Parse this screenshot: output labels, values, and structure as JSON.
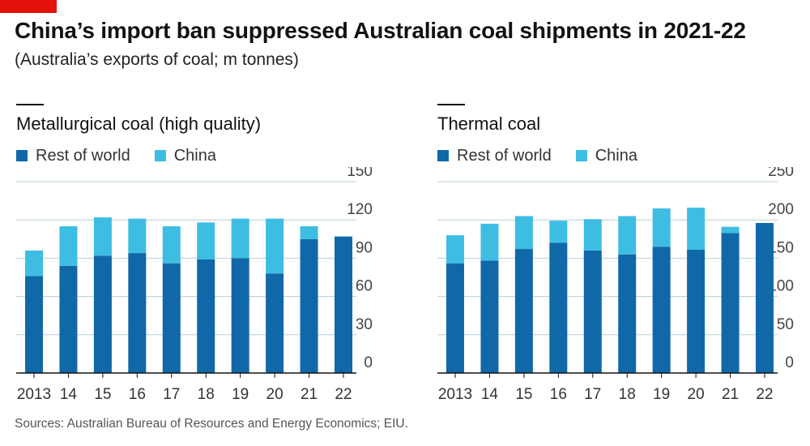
{
  "header": {
    "title": "China’s import ban suppressed Australian coal shipments in 2021-22",
    "subtitle": "(Australia’s exports of coal; m tonnes)"
  },
  "legend_labels": {
    "rest": "Rest of world",
    "china": "China"
  },
  "colors": {
    "rest_of_world": "#1068a8",
    "china": "#3ebde3",
    "brand_red": "#e3120b",
    "grid": "#b9cdd8"
  },
  "source": "Sources: Australian Bureau of Resources and Energy Economics; EIU.",
  "chart_data": [
    {
      "type": "bar",
      "stacked": true,
      "title": "Metallurgical coal (high quality)",
      "categories": [
        "2013",
        "14",
        "15",
        "16",
        "17",
        "18",
        "19",
        "20",
        "21",
        "22"
      ],
      "series": [
        {
          "name": "Rest of world",
          "values": [
            76,
            84,
            92,
            94,
            86,
            89,
            90,
            78,
            105,
            107
          ]
        },
        {
          "name": "China",
          "values": [
            20,
            31,
            30,
            27,
            29,
            29,
            31,
            43,
            10,
            0
          ]
        }
      ],
      "yticks": [
        0,
        30,
        60,
        90,
        120,
        150
      ],
      "ylim": [
        0,
        150
      ],
      "y_axis_side": "right",
      "grid": true
    },
    {
      "type": "bar",
      "stacked": true,
      "title": "Thermal coal",
      "categories": [
        "2013",
        "14",
        "15",
        "16",
        "17",
        "18",
        "19",
        "20",
        "21",
        "22"
      ],
      "series": [
        {
          "name": "Rest of world",
          "values": [
            143,
            147,
            162,
            170,
            160,
            155,
            165,
            161,
            183,
            196
          ]
        },
        {
          "name": "China",
          "values": [
            37,
            48,
            43,
            29,
            41,
            50,
            50,
            55,
            8,
            0
          ]
        }
      ],
      "yticks": [
        0,
        50,
        100,
        150,
        200,
        250
      ],
      "ylim": [
        0,
        250
      ],
      "y_axis_side": "right",
      "grid": true
    }
  ]
}
